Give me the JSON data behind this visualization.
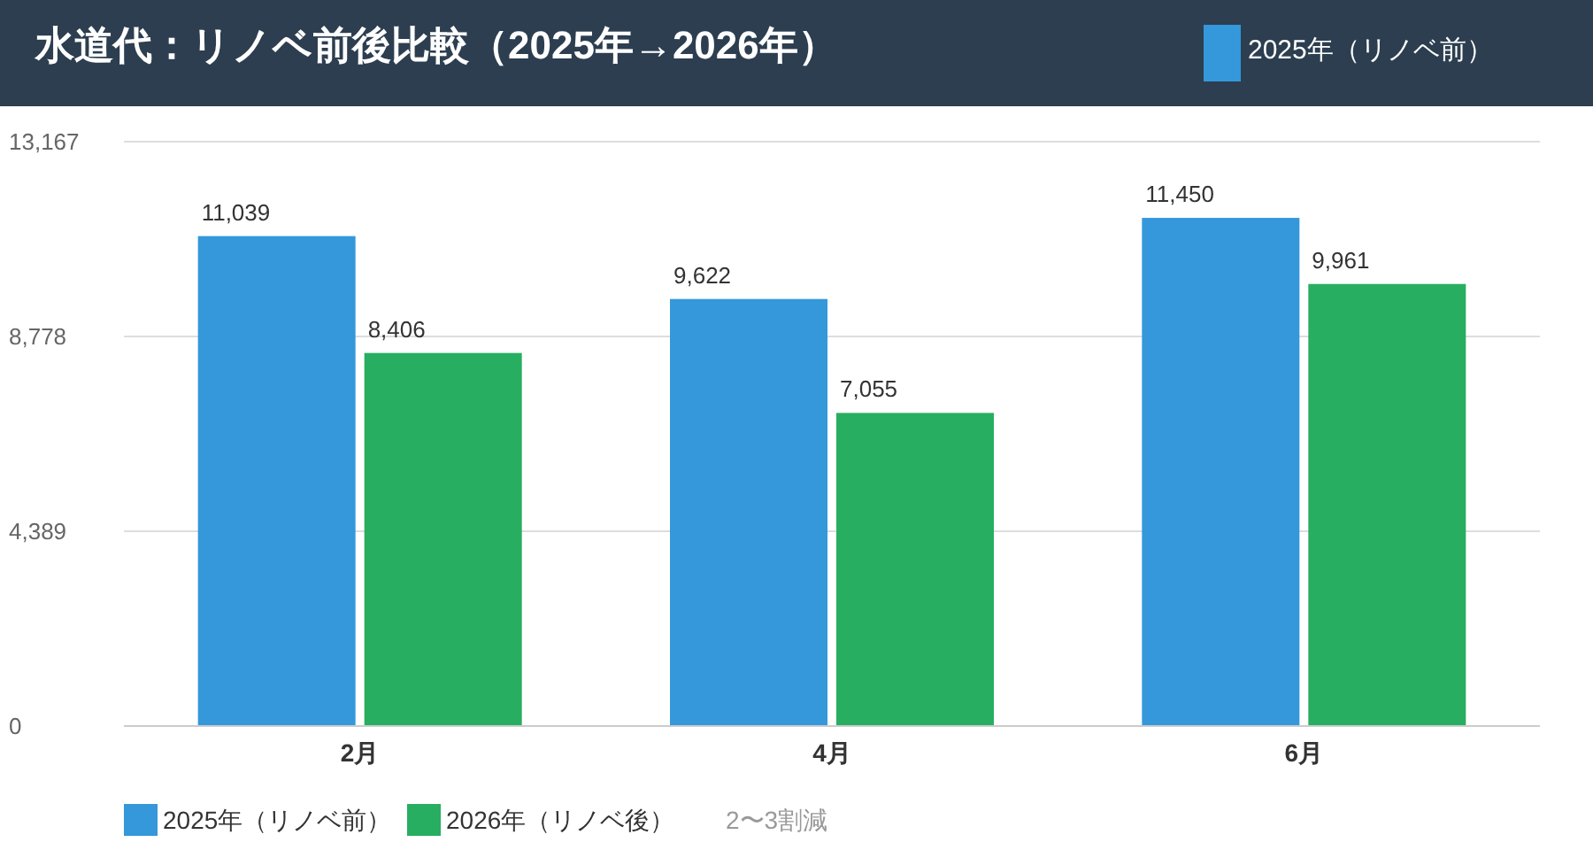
{
  "chart_data": {
    "type": "bar",
    "title": "水道代：リノベ前後比較（2025年→2026年）",
    "categories": [
      "2月",
      "4月",
      "6月"
    ],
    "series": [
      {
        "name": "2025年（リノベ前）",
        "color": "#3498db",
        "values": [
          11039,
          9622,
          11450
        ],
        "value_labels": [
          "11,039",
          "9,622",
          "11,450"
        ]
      },
      {
        "name": "2026年（リノベ後）",
        "color": "#27ae60",
        "values": [
          8406,
          7055,
          9961
        ],
        "value_labels": [
          "8,406",
          "7,055",
          "9,961"
        ]
      }
    ],
    "ylim": [
      0,
      13167
    ],
    "yticks": [
      {
        "value": 0,
        "label": "0"
      },
      {
        "value": 4389,
        "label": "4,389"
      },
      {
        "value": 8778,
        "label": "8,778"
      },
      {
        "value": 13167,
        "label": "13,167"
      }
    ],
    "grid": "y",
    "legend": "bottom",
    "annotations": [
      "2〜3割減"
    ]
  }
}
